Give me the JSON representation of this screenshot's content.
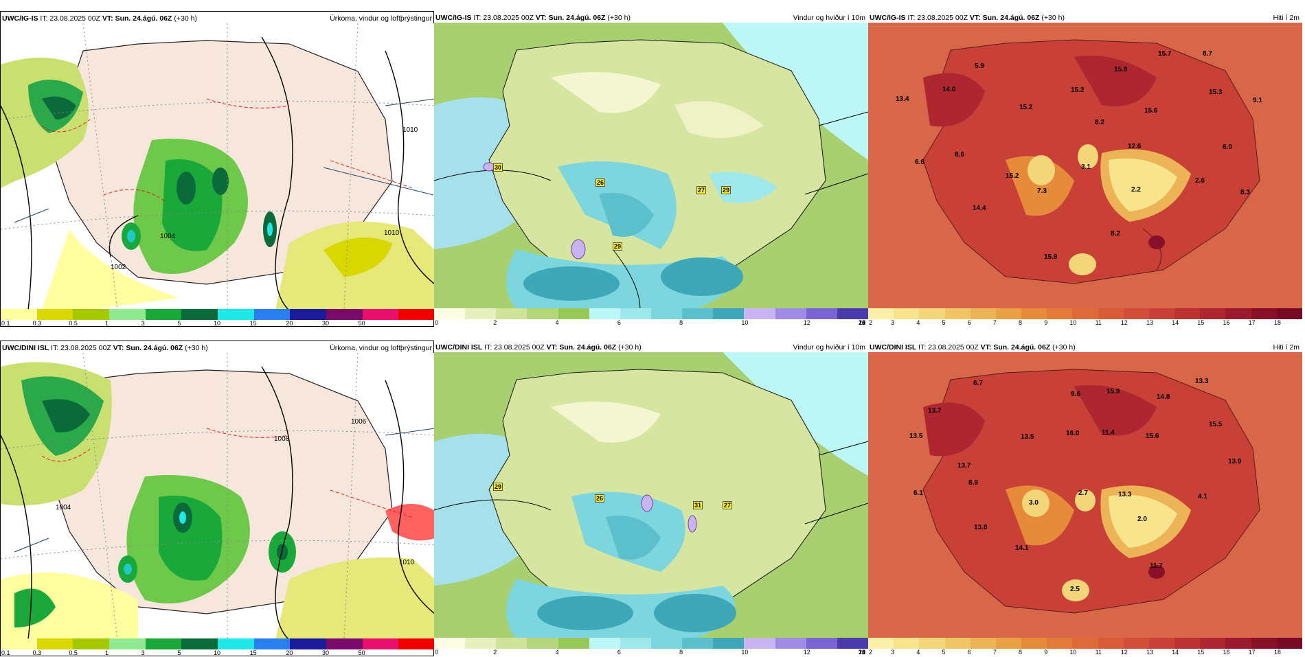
{
  "panels": [
    {
      "id": "p1",
      "left": "UWC/IG-IS",
      "it": "IT: 23.08.2025 00Z",
      "vt_label": "VT:",
      "vt": "Sun. 24.ágú. 06Z",
      "lead": "(+30 h)",
      "title": "Úrkoma, vindur og loftþrýstingur",
      "type": "precip",
      "ticks": [
        "0.1",
        "0.3",
        "0.5",
        "1",
        "3",
        "5",
        "10",
        "15",
        "20",
        "30",
        "50"
      ],
      "colors": [
        "#ffffa0",
        "#d8d800",
        "#a6c800",
        "#90e890",
        "#1aa83a",
        "#0a6a3a",
        "#20e8e8",
        "#2a7ff0",
        "#1a1a9a",
        "#7a0a6a",
        "#e8106a",
        "#f00000"
      ],
      "contours": [
        "1010",
        "1004",
        "1002",
        "1010"
      ]
    },
    {
      "id": "p2",
      "left": "UWC/IG-IS",
      "it": "IT: 23.08.2025 00Z",
      "vt_label": "VT:",
      "vt": "Sun. 24.ágú. 06Z",
      "lead": "(+30 h)",
      "title": "Vindur og hviður í 10m",
      "type": "wind",
      "ticks": [
        "0",
        "2",
        "4",
        "6",
        "8",
        "10",
        "12",
        "14",
        "16",
        "18",
        "20",
        "22"
      ],
      "colors": [
        "#fdfde6",
        "#e8f0c0",
        "#cfe49a",
        "#b4d67a",
        "#98c858",
        "#bdf6f6",
        "#9ee8ec",
        "#7dd6de",
        "#5cc0cc",
        "#3ea8b8",
        "#c8b4f0",
        "#a08ce4",
        "#7a64d4",
        "#4a3aaa"
      ],
      "gusts": [
        "30",
        "26",
        "27",
        "29",
        "29"
      ]
    },
    {
      "id": "p3",
      "left": "UWC/IG-IS",
      "it": "IT: 23.08.2025 00Z",
      "vt_label": "VT:",
      "vt": "Sun. 24.ágú. 06Z",
      "lead": "(+30 h)",
      "title": "Hiti í 2m",
      "type": "temp",
      "ticks": [
        "2",
        "3",
        "4",
        "5",
        "6",
        "7",
        "8",
        "9",
        "10",
        "11",
        "12",
        "13",
        "14",
        "15",
        "16",
        "17",
        "18"
      ],
      "colors": [
        "#fcf0a8",
        "#f8e48c",
        "#f3d57a",
        "#efc566",
        "#ecb456",
        "#e9a146",
        "#e58b3a",
        "#e27a38",
        "#dd6a38",
        "#d85c38",
        "#d24e38",
        "#c84036",
        "#bc3232",
        "#ae2630",
        "#9c1a2e",
        "#881028",
        "#760a24"
      ],
      "values": [
        "5.9",
        "15.7",
        "8.7",
        "14.0",
        "15.9",
        "13.4",
        "15.2",
        "15.3",
        "9.1",
        "15.2",
        "15.6",
        "8.2",
        "12.6",
        "6.0",
        "8.6",
        "6.6",
        "3.1",
        "15.2",
        "2.2",
        "2.6",
        "7.3",
        "8.3",
        "14.4",
        "8.2",
        "15.9"
      ]
    },
    {
      "id": "p4",
      "left": "UWC/DINI ISL",
      "it": "IT: 23.08.2025 00Z",
      "vt_label": "VT:",
      "vt": "Sun. 24.ágú. 06Z",
      "lead": "(+30 h)",
      "title": "Úrkoma, vindur og loftþrýstingur",
      "type": "precip",
      "ticks": [
        "0.1",
        "0.3",
        "0.5",
        "1",
        "3",
        "5",
        "10",
        "15",
        "20",
        "30",
        "50"
      ],
      "colors": [
        "#ffffa0",
        "#d8d800",
        "#a6c800",
        "#90e890",
        "#1aa83a",
        "#0a6a3a",
        "#20e8e8",
        "#2a7ff0",
        "#1a1a9a",
        "#7a0a6a",
        "#e8106a",
        "#f00000"
      ],
      "contours": [
        "1008",
        "1006",
        "1004",
        "1010"
      ]
    },
    {
      "id": "p5",
      "left": "UWC/DINI ISL",
      "it": "IT: 23.08.2025 00Z",
      "vt_label": "VT:",
      "vt": "Sun. 24.ágú. 06Z",
      "lead": "(+30 h)",
      "title": "Vindur og hviður í 10m",
      "type": "wind",
      "ticks": [
        "0",
        "2",
        "4",
        "6",
        "8",
        "10",
        "12",
        "14",
        "16",
        "18",
        "20",
        "22"
      ],
      "colors": [
        "#fdfde6",
        "#e8f0c0",
        "#cfe49a",
        "#b4d67a",
        "#98c858",
        "#bdf6f6",
        "#9ee8ec",
        "#7dd6de",
        "#5cc0cc",
        "#3ea8b8",
        "#c8b4f0",
        "#a08ce4",
        "#7a64d4",
        "#4a3aaa"
      ],
      "gusts": [
        "29",
        "26",
        "31",
        "27"
      ]
    },
    {
      "id": "p6",
      "left": "UWC/DINI ISL",
      "it": "IT: 23.08.2025 00Z",
      "vt_label": "VT:",
      "vt": "Sun. 24.ágú. 06Z",
      "lead": "(+30 h)",
      "title": "Hiti í 2m",
      "type": "temp",
      "ticks": [
        "2",
        "3",
        "4",
        "5",
        "6",
        "7",
        "8",
        "9",
        "10",
        "11",
        "12",
        "13",
        "14",
        "15",
        "16",
        "17",
        "18"
      ],
      "colors": [
        "#fcf0a8",
        "#f8e48c",
        "#f3d57a",
        "#efc566",
        "#ecb456",
        "#e9a146",
        "#e58b3a",
        "#e27a38",
        "#dd6a38",
        "#d85c38",
        "#d24e38",
        "#c84036",
        "#bc3232",
        "#ae2630",
        "#9c1a2e",
        "#881028",
        "#760a24"
      ],
      "values": [
        "6.7",
        "13.3",
        "13.7",
        "9.6",
        "15.9",
        "14.8",
        "15.5",
        "13.5",
        "13.5",
        "16.0",
        "11.4",
        "15.6",
        "13.9",
        "13.7",
        "8.9",
        "6.1",
        "3.0",
        "2.7",
        "13.3",
        "4.1",
        "2.0",
        "13.8",
        "14.1",
        "11.7",
        "2.5"
      ]
    }
  ]
}
